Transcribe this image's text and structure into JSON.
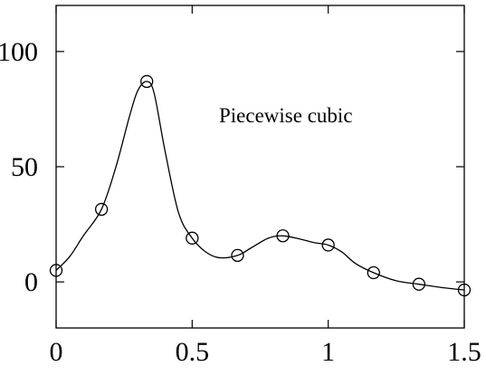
{
  "chart_data": {
    "type": "line",
    "title": "",
    "xlabel": "",
    "ylabel": "",
    "xlim": [
      0,
      1.5
    ],
    "ylim": [
      -20,
      120
    ],
    "grid": false,
    "xticks": [
      0,
      0.5,
      1,
      1.5
    ],
    "xtick_labels": [
      "0",
      "0.5",
      "1",
      "1.5"
    ],
    "yticks": [
      0,
      50,
      100
    ],
    "ytick_labels": [
      "0",
      "50",
      "100"
    ],
    "annotation": "Piecewise cubic",
    "series": [
      {
        "marker": "open-circle",
        "line": "none",
        "x": [
          0,
          0.1667,
          0.3333,
          0.5,
          0.6667,
          0.8333,
          1.0,
          1.1667,
          1.3333,
          1.5
        ],
        "y": [
          5,
          31.5,
          87,
          19,
          11.5,
          20,
          16,
          4,
          -1,
          -3.5
        ]
      },
      {
        "marker": "none",
        "line": "solid",
        "x": [
          0,
          0.05,
          0.1,
          0.1667,
          0.22,
          0.27,
          0.3,
          0.3333,
          0.36,
          0.4,
          0.45,
          0.5,
          0.55,
          0.6,
          0.6667,
          0.72,
          0.78,
          0.8333,
          0.9,
          0.95,
          1.0,
          1.05,
          1.1,
          1.1667,
          1.25,
          1.3333,
          1.42,
          1.5
        ],
        "y": [
          5,
          11,
          20,
          31.5,
          50,
          72,
          83,
          87,
          82,
          57,
          30,
          19,
          13,
          10.5,
          11.5,
          15,
          19,
          20,
          18.5,
          17,
          16,
          13,
          8,
          4,
          0.5,
          -1,
          -2.5,
          -3.5
        ]
      }
    ]
  }
}
